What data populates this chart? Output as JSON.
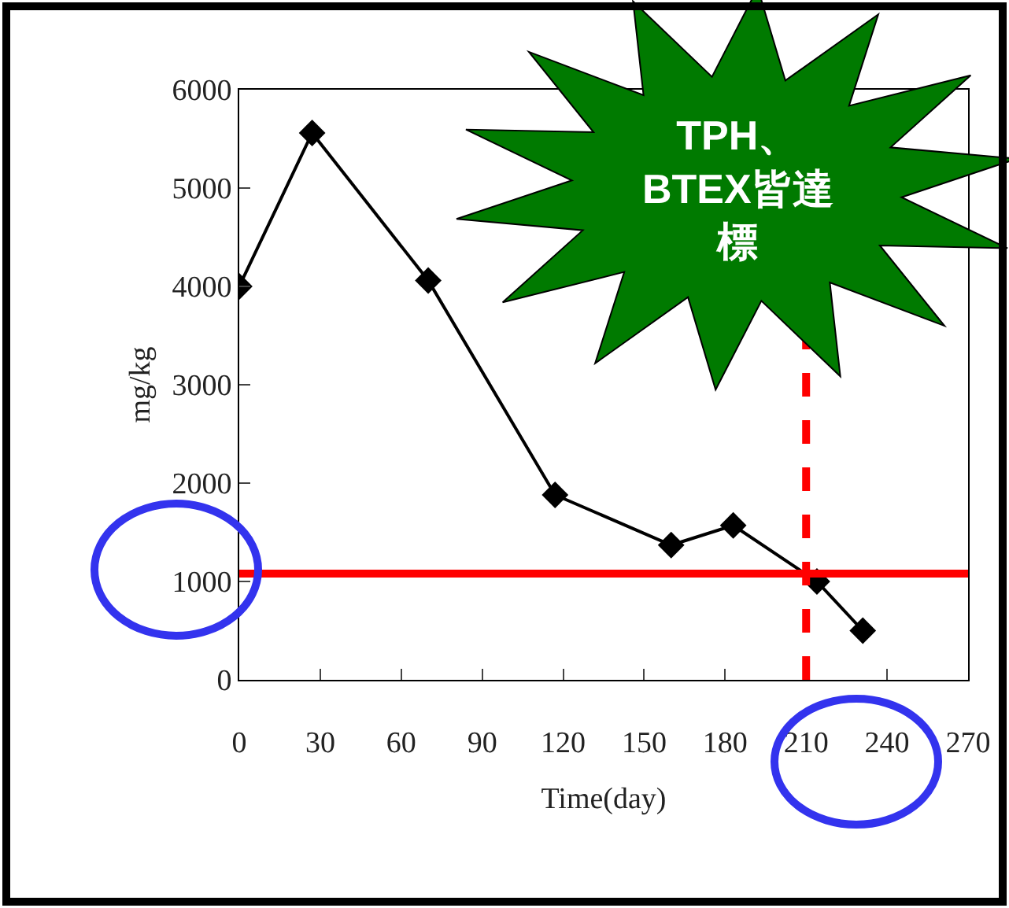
{
  "chart_data": {
    "type": "line",
    "xlabel": "Time(day)",
    "ylabel": "mg/kg",
    "x": [
      0,
      27,
      70,
      117,
      160,
      183,
      214,
      231
    ],
    "series": [
      {
        "color": "#000000",
        "values": [
          4000,
          5560,
          4060,
          1880,
          1370,
          1570,
          1000,
          500
        ]
      }
    ],
    "xlim": [
      0,
      270
    ],
    "xticks": [
      0,
      30,
      60,
      90,
      120,
      150,
      180,
      210,
      240,
      270
    ],
    "ylim": [
      0,
      6000
    ],
    "yticks": [
      0,
      1000,
      2000,
      3000,
      4000,
      5000,
      6000
    ],
    "marker": "diamond",
    "line_style": "solid",
    "ref_lines": [
      {
        "axis": "y",
        "value": 1080,
        "color": "#ff0000",
        "line_style": "solid"
      },
      {
        "axis": "x",
        "value": 210,
        "color": "#ff0000",
        "line_style": "dashed"
      }
    ],
    "annotations": [
      "TPH、BTEX皆達標"
    ]
  }
}
